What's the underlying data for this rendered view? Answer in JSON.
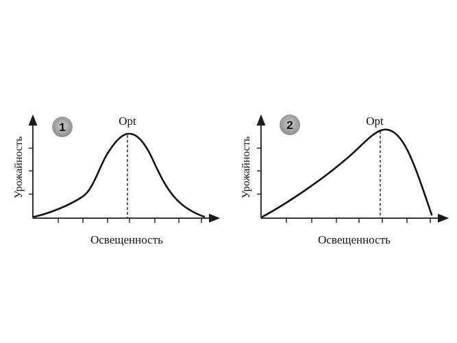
{
  "colors": {
    "ink": "#111111",
    "badge": "#9a9a9a",
    "background": "#ffffff"
  },
  "panels": [
    {
      "badge": "1",
      "opt_label": "Opt",
      "x_label": "Освещенность",
      "y_label": "Урожайность",
      "curve_shape": "symmetric-bell"
    },
    {
      "badge": "2",
      "opt_label": "Opt",
      "x_label": "Освещенность",
      "y_label": "Урожайность",
      "curve_shape": "skewed-slow-rise-steep-fall"
    }
  ]
}
